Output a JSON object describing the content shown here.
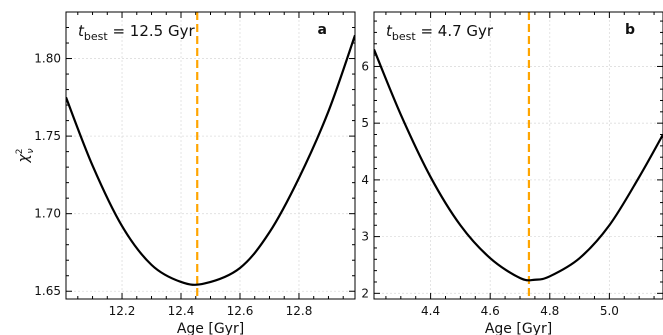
{
  "chart_data": [
    {
      "type": "line",
      "panel_letter": "a",
      "annotation_var": "t",
      "annotation_sub": "best",
      "annotation_value": " = 12.5 Gyr",
      "xlabel": "Age [Gyr]",
      "ylabel": "χ²ν",
      "xlim": [
        12.01,
        12.99
      ],
      "ylim": [
        1.645,
        1.83
      ],
      "xticks": [
        12.2,
        12.4,
        12.6,
        12.8
      ],
      "xtick_labels": [
        "12.2",
        "12.4",
        "12.6",
        "12.8"
      ],
      "yticks": [
        1.65,
        1.7,
        1.75,
        1.8
      ],
      "ytick_labels": [
        "1.65",
        "1.70",
        "1.75",
        "1.80"
      ],
      "grid": true,
      "best_x": 12.455,
      "curve_x": [
        12.01,
        12.1,
        12.2,
        12.3,
        12.4,
        12.48,
        12.6,
        12.7,
        12.8,
        12.9,
        12.99
      ],
      "curve_y": [
        1.775,
        1.731,
        1.692,
        1.667,
        1.656,
        1.655,
        1.665,
        1.688,
        1.723,
        1.766,
        1.815
      ],
      "colors": {
        "curve": "#000000",
        "best_line": "#FFA500"
      }
    },
    {
      "type": "line",
      "panel_letter": "b",
      "annotation_var": "t",
      "annotation_sub": "best",
      "annotation_value": " = 4.7 Gyr",
      "xlabel": "Age [Gyr]",
      "ylabel": "",
      "xlim": [
        4.21,
        5.18
      ],
      "ylim": [
        1.9,
        6.96
      ],
      "xticks": [
        4.4,
        4.6,
        4.8,
        5.0
      ],
      "xtick_labels": [
        "4.4",
        "4.6",
        "4.8",
        "5.0"
      ],
      "yticks": [
        2,
        3,
        4,
        5,
        6
      ],
      "ytick_labels": [
        "2",
        "3",
        "4",
        "5",
        "6"
      ],
      "grid": true,
      "best_x": 4.73,
      "curve_x": [
        4.21,
        4.3,
        4.4,
        4.5,
        4.6,
        4.7,
        4.75,
        4.8,
        4.9,
        5.0,
        5.1,
        5.18
      ],
      "curve_y": [
        6.3,
        5.15,
        4.05,
        3.2,
        2.62,
        2.27,
        2.24,
        2.3,
        2.62,
        3.2,
        4.05,
        4.8
      ],
      "colors": {
        "curve": "#000000",
        "best_line": "#FFA500"
      }
    }
  ]
}
